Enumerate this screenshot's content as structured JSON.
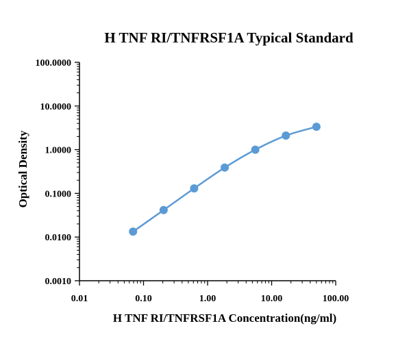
{
  "chart_data": {
    "type": "scatter",
    "title": "H TNF RI/TNFRSF1A Typical Standard",
    "xlabel": "H TNF RI/TNFRSF1A Concentration(ng/ml)",
    "ylabel": "Optical Density",
    "x_scale": "log",
    "y_scale": "log",
    "xlim": [
      0.01,
      100
    ],
    "ylim": [
      0.001,
      100
    ],
    "x_ticks": [
      "0.01",
      "0.10",
      "1.00",
      "10.00",
      "100.00"
    ],
    "y_ticks": [
      "0.0010",
      "0.0100",
      "0.1000",
      "1.0000",
      "10.0000",
      "100.0000"
    ],
    "grid": false,
    "series": [
      {
        "x": [
          0.0686,
          0.206,
          0.617,
          1.852,
          5.556,
          16.667,
          50
        ],
        "y": [
          0.0133,
          0.0415,
          0.13,
          0.39,
          1.0,
          2.1,
          3.35
        ],
        "color": "#5b9bd5",
        "fit_curve": true
      }
    ]
  }
}
